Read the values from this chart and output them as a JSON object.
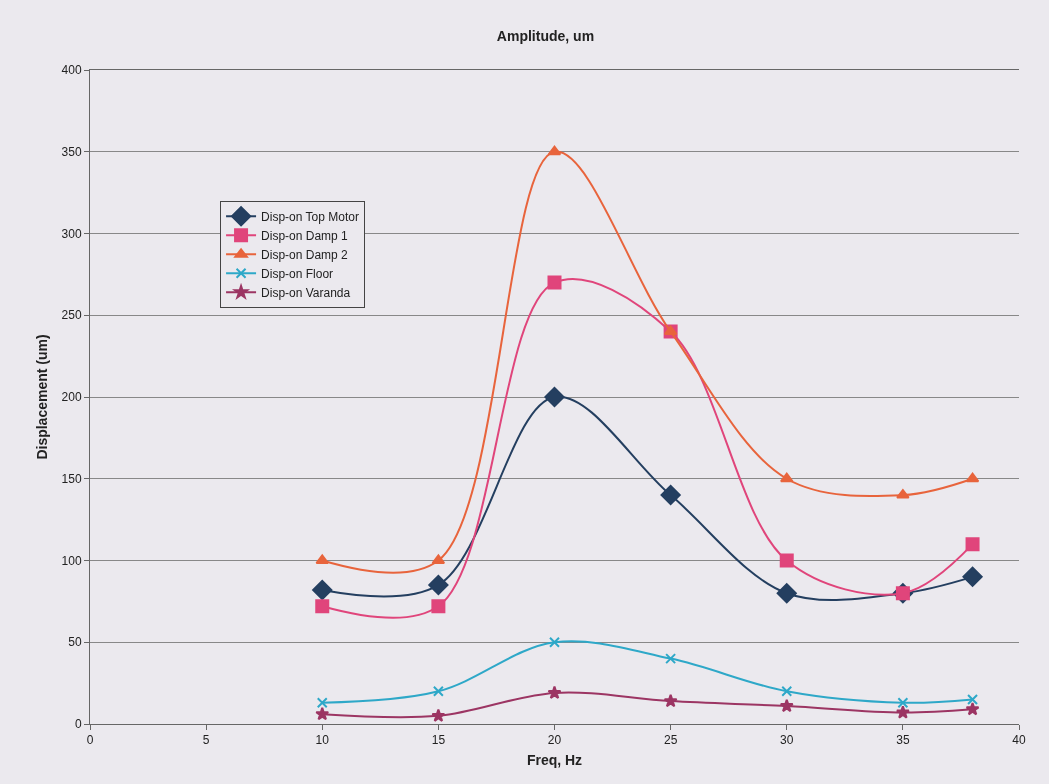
{
  "chart_data": {
    "type": "line",
    "title": "Amplitude, um",
    "xlabel": "Freq, Hz",
    "ylabel": "Displacement (um)",
    "x": [
      10,
      15,
      20,
      25,
      30,
      35,
      38
    ],
    "series": [
      {
        "name": "Disp-on Top Motor",
        "color": "#243f60",
        "marker": "diamond",
        "values": [
          82,
          85,
          200,
          140,
          80,
          80,
          90
        ]
      },
      {
        "name": "Disp-on Damp 1",
        "color": "#e0457b",
        "marker": "square",
        "values": [
          72,
          72,
          270,
          240,
          100,
          80,
          110
        ]
      },
      {
        "name": "Disp-on Damp 2",
        "color": "#e8643c",
        "marker": "triangle",
        "values": [
          100,
          100,
          350,
          240,
          150,
          140,
          150
        ]
      },
      {
        "name": "Disp-on Floor",
        "color": "#2ea8c8",
        "marker": "cross",
        "values": [
          13,
          20,
          50,
          40,
          20,
          13,
          15
        ]
      },
      {
        "name": "Disp-on Varanda",
        "color": "#9c3563",
        "marker": "star",
        "values": [
          6,
          5,
          19,
          14,
          11,
          7,
          9
        ]
      }
    ],
    "xlim": [
      0,
      40
    ],
    "xticks": [
      0,
      5,
      10,
      15,
      20,
      25,
      30,
      35,
      40
    ],
    "ylim": [
      0,
      400
    ],
    "yticks": [
      0,
      50,
      100,
      150,
      200,
      250,
      300,
      350,
      400
    ],
    "grid": "y",
    "legend": "top left",
    "line_style": "solid"
  }
}
